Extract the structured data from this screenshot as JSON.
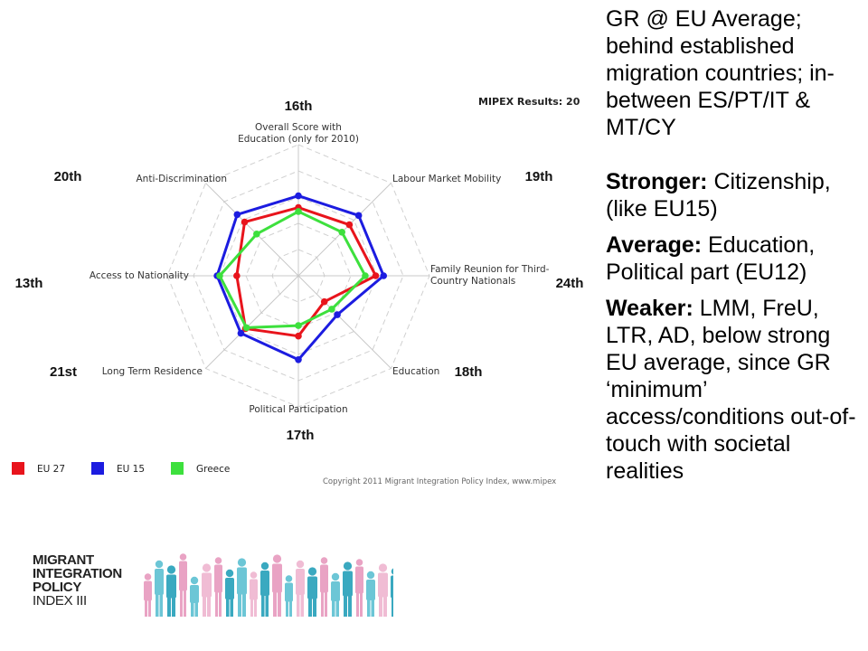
{
  "chart_data": {
    "type": "radar",
    "title": "MIPEX Results: 20",
    "copyright": "Copyright 2011 Migrant Integration Policy Index, www.mipex",
    "axes": [
      {
        "label": [
          "Overall Score with",
          "Education (only for 2010)"
        ],
        "rank": "16th"
      },
      {
        "label": [
          "Labour Market Mobility"
        ],
        "rank": "19th"
      },
      {
        "label": [
          "Family Reunion for Third-",
          "Country Nationals"
        ],
        "rank": "24th"
      },
      {
        "label": [
          "Education"
        ],
        "rank": "18th"
      },
      {
        "label": [
          "Political Participation"
        ],
        "rank": "17th"
      },
      {
        "label": [
          "Long Term Residence"
        ],
        "rank": "21st"
      },
      {
        "label": [
          "Access to Nationality"
        ],
        "rank": "13th"
      },
      {
        "label": [
          "Anti-Discrimination"
        ],
        "rank": "20th"
      }
    ],
    "rlim": [
      0,
      100
    ],
    "grid_rings": 5,
    "series": [
      {
        "name": "EU 27",
        "color": "#e8141c",
        "values": [
          52,
          55,
          59,
          28,
          46,
          57,
          47,
          58
        ]
      },
      {
        "name": "EU 15",
        "color": "#1c1ce0",
        "values": [
          61,
          65,
          65,
          42,
          64,
          62,
          62,
          66
        ]
      },
      {
        "name": "Greece",
        "color": "#3de03d",
        "values": [
          49,
          47,
          51,
          36,
          38,
          56,
          60,
          45
        ]
      }
    ]
  },
  "right_text": {
    "p1": "GR @ EU Average; behind established migration countries; in-between ES/PT/IT & MT/CY",
    "p2_bold": "Stronger:",
    "p2_rest": " Citizenship, (like EU15)",
    "p3_bold": "Average:",
    "p3_rest": " Education, Political part (EU12)",
    "p4_bold": "Weaker:",
    "p4_rest": " LMM, FreU, LTR, AD, below strong EU average, since GR ‘minimum’ access/conditions out-of-touch with societal realities"
  },
  "logo": {
    "line1": "MIGRANT",
    "line2": "INTEGRATION",
    "line3": "POLICY",
    "line4": "INDEX III"
  }
}
